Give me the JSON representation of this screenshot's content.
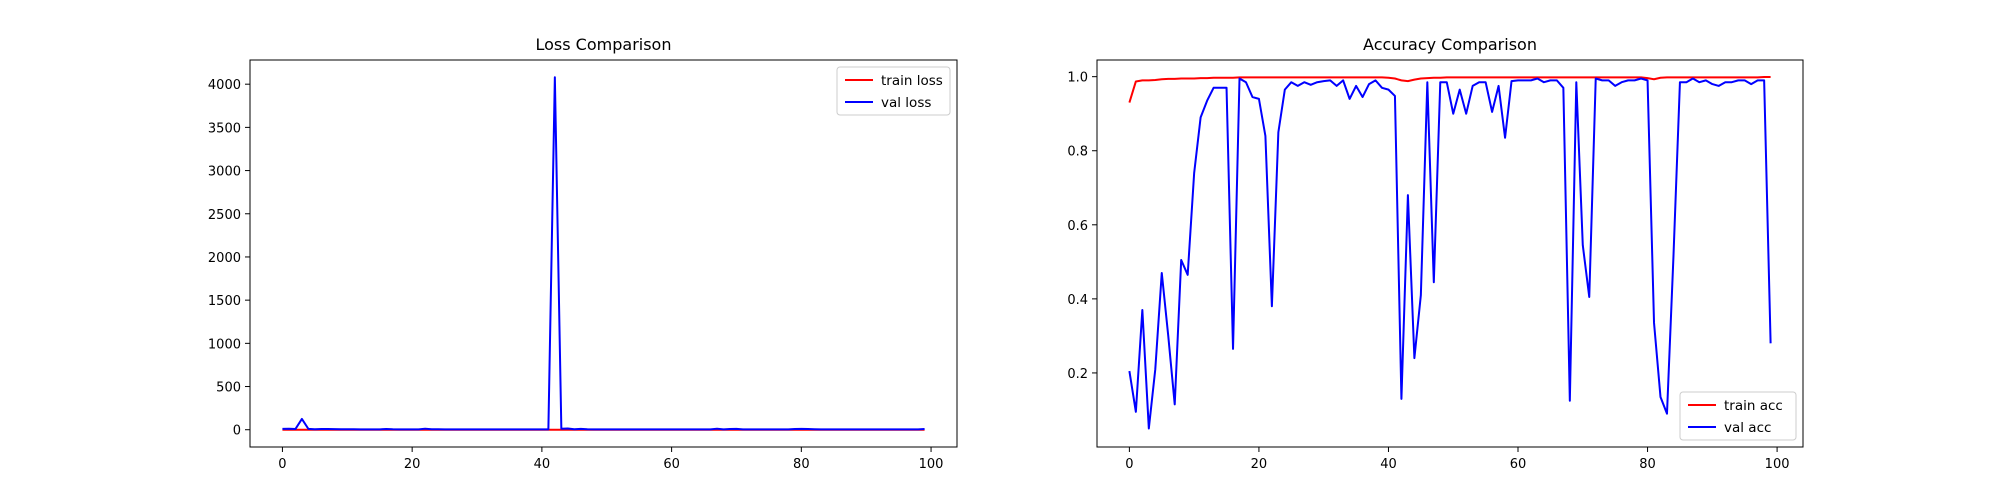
{
  "chart_data": [
    {
      "type": "line",
      "title": "Loss Comparison",
      "xlim": [
        -5,
        104
      ],
      "ylim": [
        -200,
        4280
      ],
      "xticks": [
        0,
        20,
        40,
        60,
        80,
        100
      ],
      "xtick_labels": [
        "0",
        "20",
        "40",
        "60",
        "80",
        "100"
      ],
      "yticks": [
        0,
        500,
        1000,
        1500,
        2000,
        2500,
        3000,
        3500,
        4000
      ],
      "ytick_labels": [
        "0",
        "500",
        "1000",
        "1500",
        "2000",
        "2500",
        "3000",
        "3500",
        "4000"
      ],
      "legend_position": "top-right",
      "grid": false,
      "x": [
        0,
        1,
        2,
        3,
        4,
        5,
        6,
        7,
        8,
        9,
        10,
        11,
        12,
        13,
        14,
        15,
        16,
        17,
        18,
        19,
        20,
        21,
        22,
        23,
        24,
        25,
        26,
        27,
        28,
        29,
        30,
        31,
        32,
        33,
        34,
        35,
        36,
        37,
        38,
        39,
        40,
        41,
        42,
        43,
        44,
        45,
        46,
        47,
        48,
        49,
        50,
        51,
        52,
        53,
        54,
        55,
        56,
        57,
        58,
        59,
        60,
        61,
        62,
        63,
        64,
        65,
        66,
        67,
        68,
        69,
        70,
        71,
        72,
        73,
        74,
        75,
        76,
        77,
        78,
        79,
        80,
        81,
        82,
        83,
        84,
        85,
        86,
        87,
        88,
        89,
        90,
        91,
        92,
        93,
        94,
        95,
        96,
        97,
        98,
        99
      ],
      "series": [
        {
          "name": "train loss",
          "color": "#ff0000",
          "values": [
            0.3,
            0.05,
            0.04,
            0.03,
            0.03,
            0.03,
            0.02,
            0.02,
            0.02,
            0.02,
            0.02,
            0.02,
            0.02,
            0.02,
            0.02,
            0.02,
            0.02,
            0.02,
            0.02,
            0.02,
            0.02,
            0.02,
            0.02,
            0.02,
            0.02,
            0.02,
            0.02,
            0.02,
            0.02,
            0.02,
            0.02,
            0.02,
            0.02,
            0.02,
            0.02,
            0.02,
            0.02,
            0.02,
            0.02,
            0.02,
            0.02,
            0.02,
            0.02,
            0.02,
            0.02,
            0.02,
            0.02,
            0.02,
            0.02,
            0.02,
            0.02,
            0.02,
            0.02,
            0.02,
            0.02,
            0.02,
            0.02,
            0.02,
            0.02,
            0.02,
            0.02,
            0.02,
            0.02,
            0.02,
            0.02,
            0.02,
            0.02,
            0.02,
            0.02,
            0.02,
            0.02,
            0.02,
            0.02,
            0.02,
            0.02,
            0.02,
            0.02,
            0.02,
            0.02,
            0.02,
            0.02,
            0.02,
            0.02,
            0.02,
            0.02,
            0.02,
            0.02,
            0.02,
            0.02,
            0.02,
            0.02,
            0.02,
            0.02,
            0.02,
            0.02,
            0.02,
            0.02,
            0.02,
            0.02,
            0.02
          ]
        },
        {
          "name": "val loss",
          "color": "#0000ff",
          "values": [
            10,
            12,
            8,
            125,
            10,
            6,
            9,
            8,
            7,
            6,
            5,
            5,
            4,
            4,
            4,
            4,
            8,
            5,
            4,
            4,
            4,
            4,
            12,
            6,
            5,
            4,
            4,
            4,
            4,
            4,
            4,
            4,
            4,
            4,
            4,
            4,
            4,
            4,
            4,
            4,
            4,
            4,
            4080,
            12,
            14,
            6,
            10,
            5,
            4,
            4,
            4,
            4,
            4,
            4,
            4,
            4,
            4,
            4,
            4,
            4,
            4,
            4,
            4,
            4,
            4,
            4,
            4,
            12,
            4,
            8,
            10,
            4,
            4,
            4,
            4,
            4,
            4,
            4,
            4,
            8,
            10,
            8,
            6,
            4,
            4,
            4,
            4,
            4,
            4,
            4,
            4,
            4,
            4,
            4,
            4,
            4,
            4,
            4,
            4,
            8
          ]
        }
      ]
    },
    {
      "type": "line",
      "title": "Accuracy Comparison",
      "xlim": [
        -5,
        104
      ],
      "ylim": [
        0.0,
        1.045
      ],
      "xticks": [
        0,
        20,
        40,
        60,
        80,
        100
      ],
      "xtick_labels": [
        "0",
        "20",
        "40",
        "60",
        "80",
        "100"
      ],
      "yticks": [
        0.2,
        0.4,
        0.6,
        0.8,
        1.0
      ],
      "ytick_labels": [
        "0.2",
        "0.4",
        "0.6",
        "0.8",
        "1.0"
      ],
      "legend_position": "bottom-right",
      "grid": false,
      "x": [
        0,
        1,
        2,
        3,
        4,
        5,
        6,
        7,
        8,
        9,
        10,
        11,
        12,
        13,
        14,
        15,
        16,
        17,
        18,
        19,
        20,
        21,
        22,
        23,
        24,
        25,
        26,
        27,
        28,
        29,
        30,
        31,
        32,
        33,
        34,
        35,
        36,
        37,
        38,
        39,
        40,
        41,
        42,
        43,
        44,
        45,
        46,
        47,
        48,
        49,
        50,
        51,
        52,
        53,
        54,
        55,
        56,
        57,
        58,
        59,
        60,
        61,
        62,
        63,
        64,
        65,
        66,
        67,
        68,
        69,
        70,
        71,
        72,
        73,
        74,
        75,
        76,
        77,
        78,
        79,
        80,
        81,
        82,
        83,
        84,
        85,
        86,
        87,
        88,
        89,
        90,
        91,
        92,
        93,
        94,
        95,
        96,
        97,
        98,
        99
      ],
      "series": [
        {
          "name": "train acc",
          "color": "#ff0000",
          "values": [
            0.93,
            0.987,
            0.99,
            0.99,
            0.991,
            0.993,
            0.994,
            0.994,
            0.995,
            0.995,
            0.995,
            0.996,
            0.996,
            0.997,
            0.997,
            0.997,
            0.997,
            0.998,
            0.998,
            0.998,
            0.998,
            0.998,
            0.998,
            0.998,
            0.998,
            0.998,
            0.998,
            0.998,
            0.998,
            0.998,
            0.998,
            0.998,
            0.998,
            0.998,
            0.998,
            0.998,
            0.998,
            0.998,
            0.998,
            0.998,
            0.997,
            0.995,
            0.99,
            0.988,
            0.992,
            0.995,
            0.996,
            0.997,
            0.997,
            0.998,
            0.998,
            0.998,
            0.998,
            0.998,
            0.998,
            0.998,
            0.998,
            0.998,
            0.998,
            0.998,
            0.998,
            0.998,
            0.998,
            0.998,
            0.998,
            0.998,
            0.998,
            0.998,
            0.998,
            0.998,
            0.998,
            0.998,
            0.998,
            0.998,
            0.998,
            0.998,
            0.998,
            0.998,
            0.998,
            0.998,
            0.996,
            0.993,
            0.997,
            0.998,
            0.998,
            0.998,
            0.998,
            0.998,
            0.998,
            0.998,
            0.998,
            0.998,
            0.998,
            0.998,
            0.998,
            0.998,
            0.998,
            0.998,
            0.999,
            0.999
          ]
        },
        {
          "name": "val acc",
          "color": "#0000ff",
          "values": [
            0.205,
            0.095,
            0.37,
            0.05,
            0.21,
            0.47,
            0.3,
            0.115,
            0.505,
            0.465,
            0.74,
            0.89,
            0.935,
            0.97,
            0.97,
            0.97,
            0.265,
            0.995,
            0.985,
            0.945,
            0.94,
            0.84,
            0.38,
            0.85,
            0.965,
            0.985,
            0.975,
            0.985,
            0.978,
            0.985,
            0.988,
            0.99,
            0.975,
            0.99,
            0.94,
            0.975,
            0.945,
            0.98,
            0.99,
            0.97,
            0.965,
            0.948,
            0.13,
            0.68,
            0.24,
            0.41,
            0.985,
            0.445,
            0.985,
            0.985,
            0.9,
            0.965,
            0.9,
            0.975,
            0.985,
            0.985,
            0.905,
            0.975,
            0.835,
            0.988,
            0.99,
            0.99,
            0.99,
            0.995,
            0.985,
            0.99,
            0.99,
            0.97,
            0.125,
            0.985,
            0.545,
            0.405,
            0.995,
            0.99,
            0.99,
            0.975,
            0.985,
            0.99,
            0.99,
            0.995,
            0.99,
            0.335,
            0.135,
            0.09,
            0.515,
            0.985,
            0.985,
            0.995,
            0.985,
            0.99,
            0.98,
            0.975,
            0.985,
            0.985,
            0.99,
            0.99,
            0.98,
            0.99,
            0.99,
            0.28
          ]
        }
      ]
    }
  ]
}
